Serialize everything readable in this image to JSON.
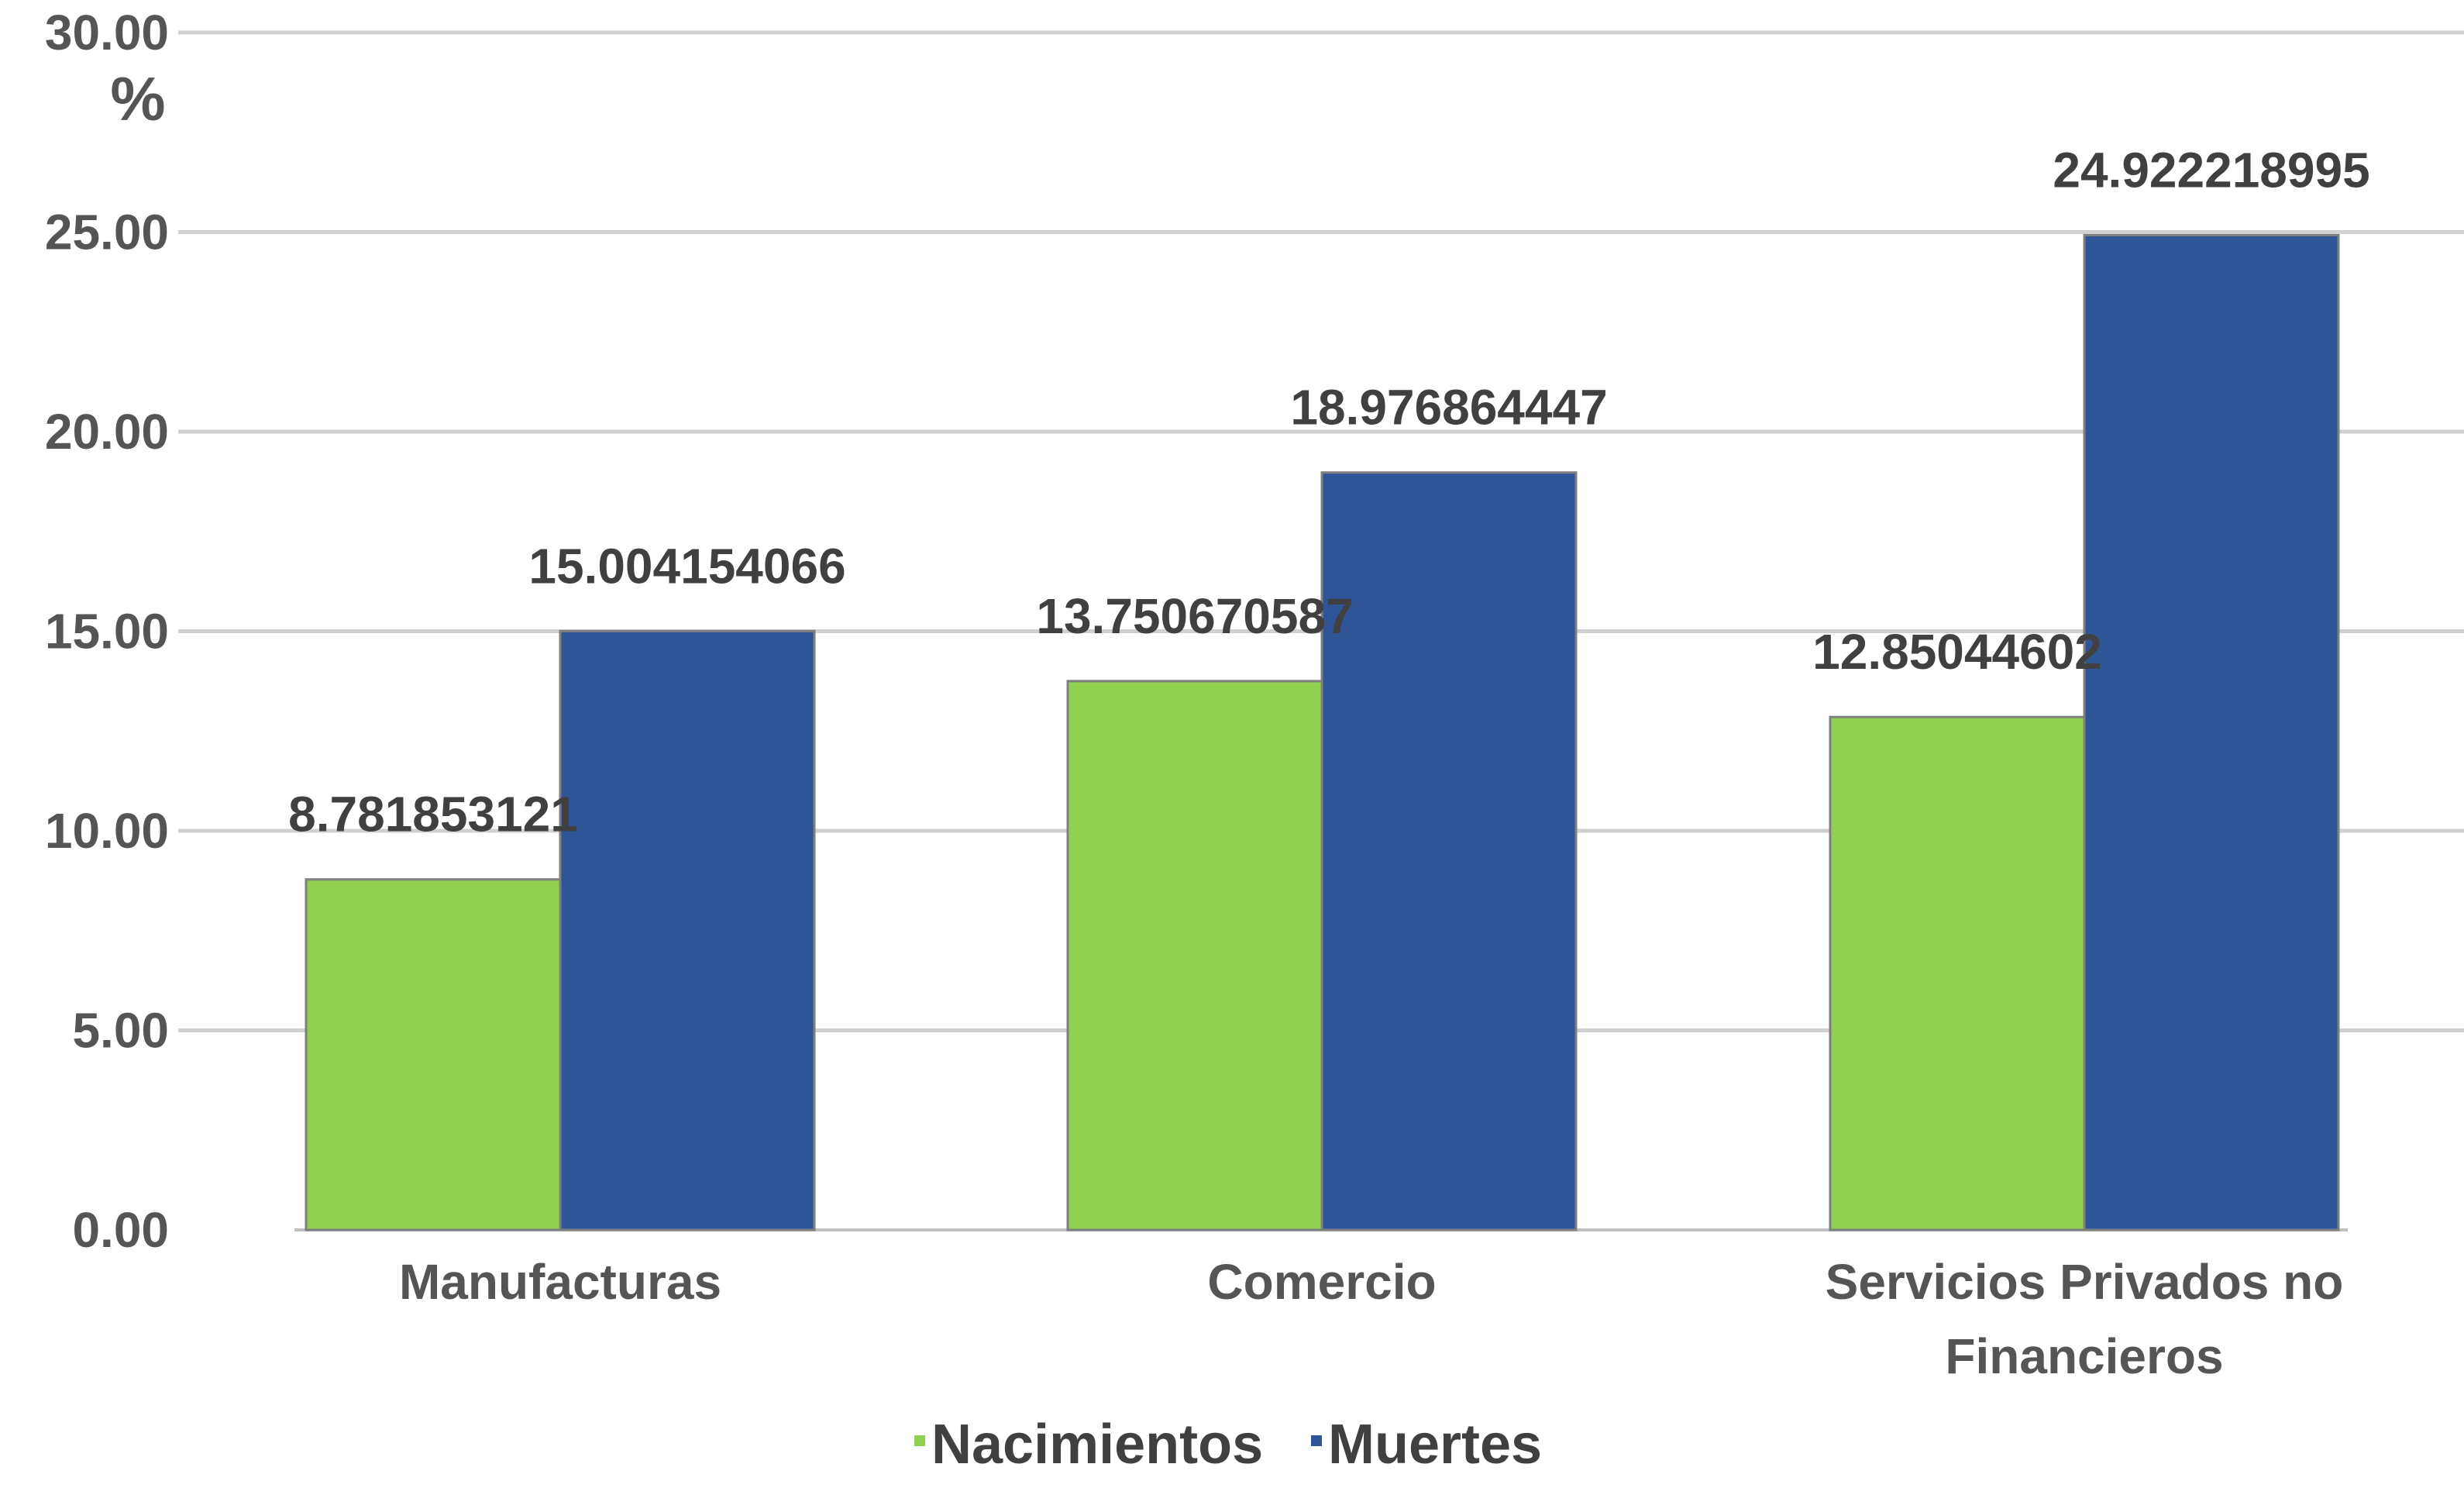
{
  "chart_data": {
    "type": "bar",
    "title": "",
    "xlabel": "",
    "ylabel": "%",
    "ylim": [
      0,
      30
    ],
    "yticks": [
      "0.00",
      "5.00",
      "10.00",
      "15.00",
      "20.00",
      "25.00",
      "30.00"
    ],
    "grid": true,
    "legend_position": "bottom",
    "categories": [
      [
        "Manufacturas"
      ],
      [
        "Comercio"
      ],
      [
        "Servicios Privados no",
        "Financieros"
      ]
    ],
    "series": [
      {
        "name": "Nacimientos",
        "color": "#92d050",
        "values": [
          8.781853121,
          13.750670587,
          12.85044602
        ],
        "labels": [
          "8.781853121",
          "13.750670587",
          "12.85044602"
        ]
      },
      {
        "name": "Muertes",
        "color": "#2f5597",
        "values": [
          15.004154066,
          18.976864447,
          24.922218995
        ],
        "labels": [
          "15.004154066",
          "18.976864447",
          "24.922218995"
        ]
      }
    ]
  }
}
